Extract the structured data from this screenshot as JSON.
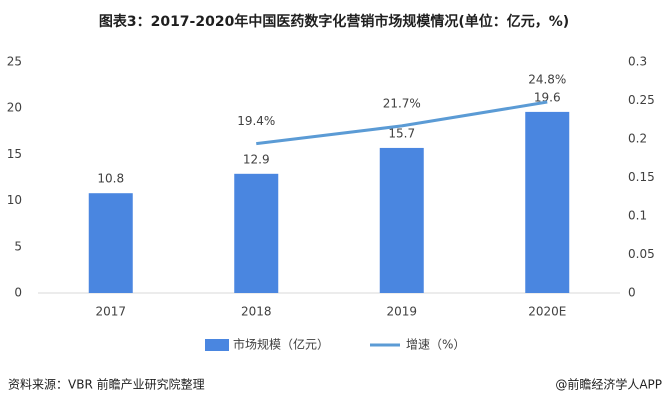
{
  "chart_data": {
    "type": "bar",
    "title": "图表3：2017-2020年中国医药数字化营销市场规模情况(单位：亿元，%)",
    "categories": [
      "2017",
      "2018",
      "2019",
      "2020E"
    ],
    "series": [
      {
        "name": "市场规模（亿元）",
        "type": "bar",
        "color": "#4a86e0",
        "values": [
          10.8,
          12.9,
          15.7,
          19.6
        ]
      },
      {
        "name": "增速（%）",
        "type": "line",
        "axis": "y2",
        "color": "#5b9bd5",
        "values": [
          null,
          0.194,
          0.217,
          0.248
        ],
        "value_labels": [
          null,
          "19.4%",
          "21.7%",
          "24.8%"
        ]
      }
    ],
    "ylim": [
      0,
      25
    ],
    "yticks": [
      0,
      5,
      10,
      15,
      20,
      25
    ],
    "y2lim": [
      0,
      0.3
    ],
    "y2ticks": [
      0,
      0.05,
      0.1,
      0.15,
      0.2,
      0.25,
      0.3
    ],
    "grid": false,
    "source": "资料来源：VBR 前瞻产业研究院整理",
    "credit": "@前瞻经济学人APP"
  }
}
